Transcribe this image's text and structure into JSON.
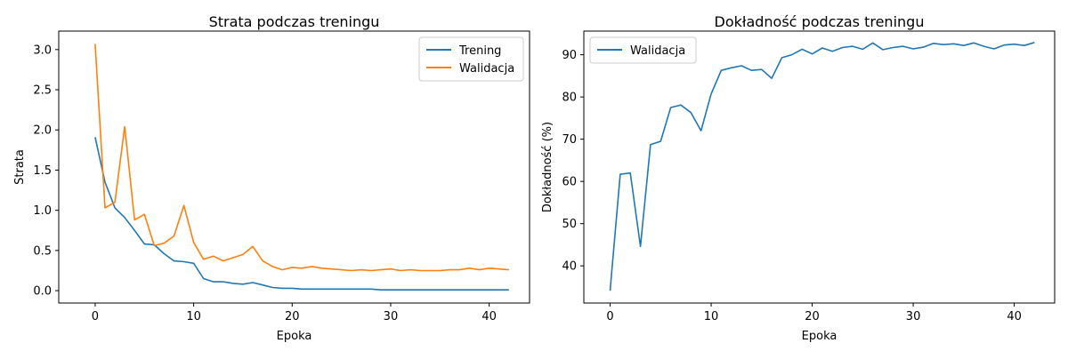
{
  "chart_data": [
    {
      "type": "line",
      "title": "Strata podczas treningu",
      "xlabel": "Epoka",
      "ylabel": "Strata",
      "xlim": [
        -3.7,
        44.1
      ],
      "ylim": [
        -0.154,
        3.23
      ],
      "xticks": [
        0,
        10,
        20,
        30,
        40
      ],
      "yticks": [
        0.0,
        0.5,
        1.0,
        1.5,
        2.0,
        2.5,
        3.0
      ],
      "ytick_labels": [
        "0.0",
        "0.5",
        "1.0",
        "1.5",
        "2.0",
        "2.5",
        "3.0"
      ],
      "grid": false,
      "legend_position": "top-right",
      "x": [
        0,
        1,
        2,
        3,
        4,
        5,
        6,
        7,
        8,
        9,
        10,
        11,
        12,
        13,
        14,
        15,
        16,
        17,
        18,
        19,
        20,
        21,
        22,
        23,
        24,
        25,
        26,
        27,
        28,
        29,
        30,
        31,
        32,
        33,
        34,
        35,
        36,
        37,
        38,
        39,
        40,
        41,
        42
      ],
      "series": [
        {
          "name": "Trening",
          "color": "#1f77b4",
          "values": [
            1.91,
            1.35,
            1.03,
            0.91,
            0.75,
            0.58,
            0.57,
            0.46,
            0.37,
            0.36,
            0.34,
            0.15,
            0.11,
            0.11,
            0.09,
            0.08,
            0.1,
            0.07,
            0.04,
            0.03,
            0.03,
            0.02,
            0.02,
            0.02,
            0.02,
            0.02,
            0.02,
            0.02,
            0.02,
            0.01,
            0.01,
            0.01,
            0.01,
            0.01,
            0.01,
            0.01,
            0.01,
            0.01,
            0.01,
            0.01,
            0.01,
            0.01,
            0.01
          ]
        },
        {
          "name": "Walidacja",
          "color": "#ff7f0e",
          "values": [
            3.07,
            1.03,
            1.1,
            2.04,
            0.88,
            0.95,
            0.56,
            0.59,
            0.68,
            1.06,
            0.6,
            0.39,
            0.43,
            0.37,
            0.41,
            0.45,
            0.55,
            0.37,
            0.3,
            0.26,
            0.29,
            0.28,
            0.3,
            0.28,
            0.27,
            0.26,
            0.25,
            0.26,
            0.25,
            0.26,
            0.27,
            0.25,
            0.26,
            0.25,
            0.25,
            0.25,
            0.26,
            0.26,
            0.28,
            0.26,
            0.28,
            0.27,
            0.26
          ]
        }
      ]
    },
    {
      "type": "line",
      "title": "Dokładność podczas treningu",
      "xlabel": "Epoka",
      "ylabel": "Dokładność (%)",
      "xlim": [
        -2.6,
        44.0
      ],
      "ylim": [
        31.2,
        95.6
      ],
      "xticks": [
        0,
        10,
        20,
        30,
        40
      ],
      "yticks": [
        40,
        50,
        60,
        70,
        80,
        90
      ],
      "ytick_labels": [
        "40",
        "50",
        "60",
        "70",
        "80",
        "90"
      ],
      "grid": false,
      "legend_position": "top-left",
      "x": [
        0,
        1,
        2,
        3,
        4,
        5,
        6,
        7,
        8,
        9,
        10,
        11,
        12,
        13,
        14,
        15,
        16,
        17,
        18,
        19,
        20,
        21,
        22,
        23,
        24,
        25,
        26,
        27,
        28,
        29,
        30,
        31,
        32,
        33,
        34,
        35,
        36,
        37,
        38,
        39,
        40,
        41,
        42
      ],
      "series": [
        {
          "name": "Walidacja",
          "color": "#1f77b4",
          "values": [
            34.1,
            61.7,
            62.0,
            44.6,
            68.7,
            69.5,
            77.5,
            78.1,
            76.3,
            72.0,
            80.7,
            86.3,
            86.9,
            87.4,
            86.3,
            86.5,
            84.4,
            89.3,
            90.0,
            91.3,
            90.2,
            91.6,
            90.8,
            91.7,
            92.0,
            91.3,
            92.8,
            91.2,
            91.7,
            92.0,
            91.4,
            91.8,
            92.7,
            92.4,
            92.6,
            92.2,
            92.8,
            92.0,
            91.4,
            92.3,
            92.5,
            92.2,
            92.9
          ]
        }
      ]
    }
  ]
}
